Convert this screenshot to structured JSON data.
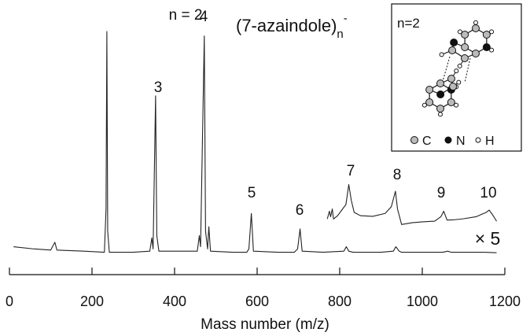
{
  "chart_data": {
    "type": "line",
    "title": {
      "main": "(7-azaindole)",
      "sub": "n",
      "sup": "-"
    },
    "x_label": "Mass number (m/z)",
    "xlim": [
      0,
      1200
    ],
    "xticks": [
      0,
      200,
      400,
      600,
      800,
      1000,
      1200
    ],
    "ylim": [
      0,
      100
    ],
    "series": [
      {
        "color": "#222222",
        "x": [
          10,
          60,
          100,
          110,
          115,
          180,
          230,
          234,
          236,
          238,
          242,
          300,
          340,
          345,
          348,
          350,
          354,
          357,
          362,
          420,
          455,
          460,
          463,
          466,
          472,
          475,
          480,
          483,
          487,
          540,
          575,
          580,
          586,
          591,
          650,
          690,
          698,
          704,
          709,
          760,
          810,
          816,
          822,
          832,
          900,
          930,
          936,
          944,
          950,
          1050,
          1062,
          1070,
          1150,
          1180
        ],
        "values": [
          3,
          2,
          1.5,
          5,
          1.5,
          1,
          0.5,
          20,
          100,
          10,
          0.5,
          0.5,
          1,
          7,
          2,
          25,
          71,
          8,
          1,
          1,
          1,
          8,
          3,
          35,
          98,
          10,
          2,
          12,
          1,
          0.5,
          0.5,
          2,
          18,
          1,
          0.5,
          0.5,
          2,
          11,
          1,
          0.5,
          1,
          3,
          1,
          0.5,
          0.5,
          1,
          3,
          1,
          0.5,
          0.5,
          1,
          0.5,
          0.5,
          0.3
        ]
      },
      {
        "color": "#222222",
        "x": [
          770,
          775,
          778,
          782,
          785,
          795,
          805,
          815,
          822,
          828,
          835,
          850,
          880,
          910,
          925,
          935,
          940,
          950,
          975,
          1000,
          1030,
          1045,
          1052,
          1060,
          1080,
          1100,
          1130,
          1155,
          1162,
          1170,
          1180
        ],
        "values": [
          15.5,
          19,
          16.5,
          20,
          15.5,
          17,
          19.5,
          22,
          31,
          24,
          18.5,
          17,
          16.7,
          18,
          21,
          28,
          20,
          13,
          13.8,
          14.2,
          14.5,
          16.5,
          19,
          15,
          15.2,
          15.6,
          16.5,
          18.5,
          19.5,
          17.5,
          14.5
        ]
      }
    ],
    "peak_labels": [
      "n = 2",
      "3",
      "4",
      "5",
      "6",
      "7",
      "8",
      "9",
      "10"
    ],
    "scale_label": "× 5",
    "inset": {
      "label": "n=2",
      "legend": [
        "C",
        "N",
        "H"
      ]
    }
  }
}
